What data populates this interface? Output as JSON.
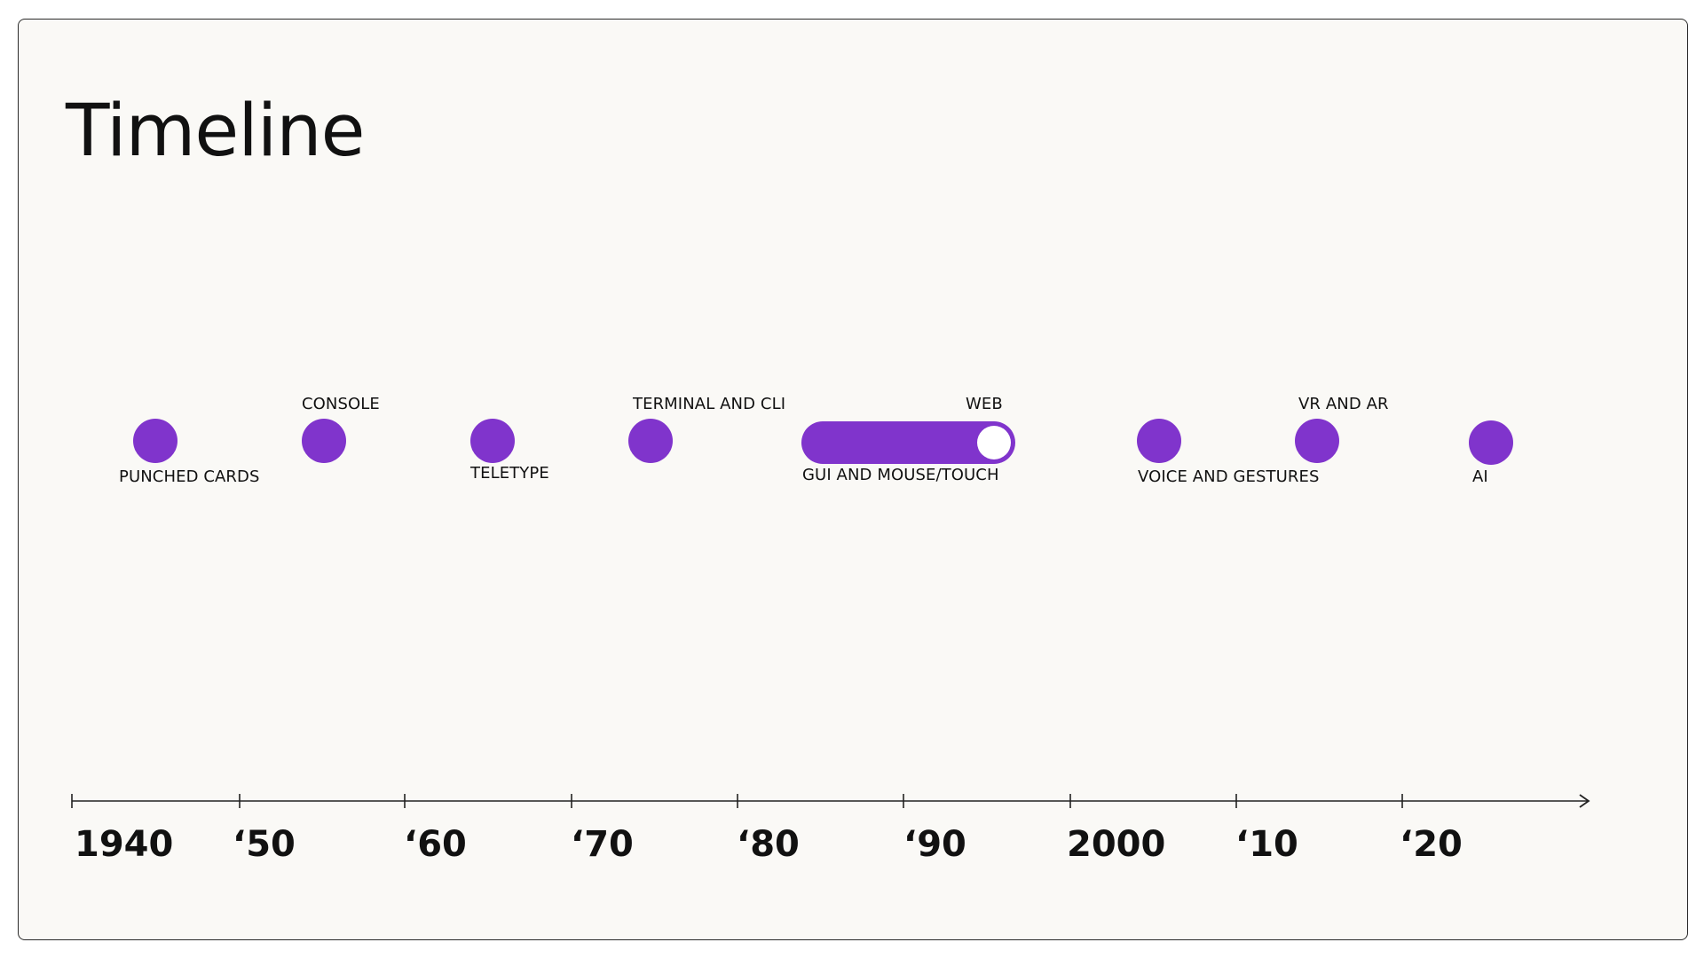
{
  "title": "Timeline",
  "accent_color": "#8034cc",
  "events": [
    {
      "label": "PUNCHED CARDS"
    },
    {
      "label": "CONSOLE"
    },
    {
      "label": "TELETYPE"
    },
    {
      "label": "TERMINAL AND CLI"
    },
    {
      "label": "GUI AND MOUSE/TOUCH"
    },
    {
      "label": "WEB"
    },
    {
      "label": "VOICE AND GESTURES"
    },
    {
      "label": "VR AND AR"
    },
    {
      "label": "AI"
    }
  ],
  "axis": {
    "ticks": [
      "1940",
      "‘50",
      "‘60",
      "‘70",
      "‘80",
      "‘90",
      "2000",
      "‘10",
      "‘20"
    ]
  }
}
